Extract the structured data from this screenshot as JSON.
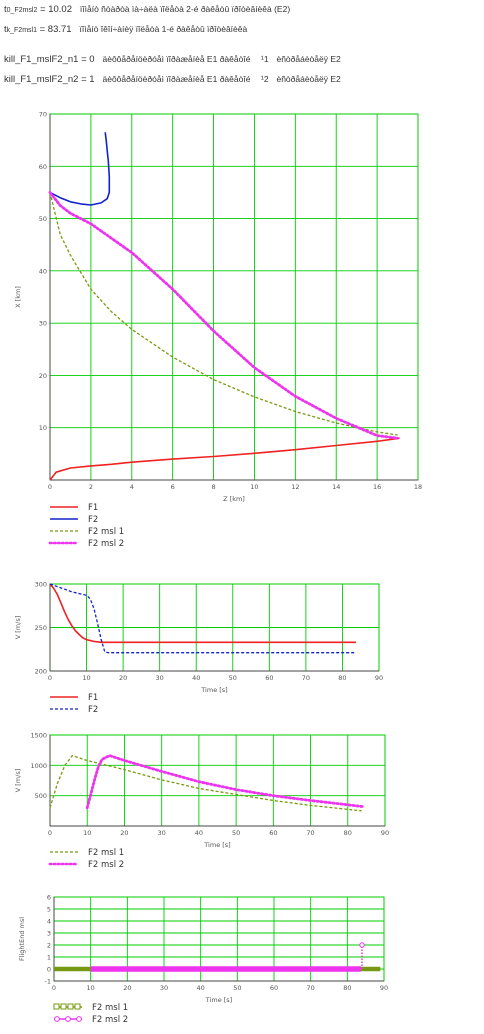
{
  "header": {
    "t0_label": "t",
    "t0_sub": "0_F2msl2",
    "t0_value": "= 10.02",
    "t0_desc": "ïîìåíò ñòàðòà ìà÷àëà ïîëåòà 2-é ðàêåòû ïðîòèâíèêà (E2)",
    "tk_label": "t",
    "tk_sub": "k_F2msl1",
    "tk_value": "= 83.71",
    "tk_desc": "ïîìåíò îêîí÷àíèÿ ïîëåòà 1-é ðàêåòû ïðîòèâíèêà",
    "kill1_label": "kill_F1_mslF2_n1 = 0",
    "kill1_desc": "äèôôåðåíöèðóåì ïîðàæåíèå E1 ðàêåòîé",
    "kill1_num": "¹1",
    "kill1_tail": "èñòðåáèòåëÿ E2",
    "kill2_label": "kill_F1_mslF2_n2 = 1",
    "kill2_desc": "äèôôåðåíöèðóåì ïîðàæåíèå E1 ðàêåòîé",
    "kill2_num": "¹2",
    "kill2_tail": "èñòðåáèòåëÿ E2"
  },
  "colors": {
    "grid": "#00cc00",
    "F1": "#ee2222",
    "F2": "#1122cc",
    "F2msl1": "#779911",
    "F2msl2": "#ee33ee",
    "fe_msl1": "#779911",
    "fe_msl2": "#ee33ee"
  },
  "chart_data": [
    {
      "id": "xz",
      "type": "line",
      "xlabel": "Z  [km]",
      "ylabel": "X  [km]",
      "xlim": [
        0,
        18
      ],
      "ylim": [
        0,
        70
      ],
      "xticks": [
        "0",
        "2",
        "4",
        "6",
        "8",
        "10",
        "12",
        "14",
        "16",
        "18"
      ],
      "yticks": [
        "10",
        "20",
        "30",
        "40",
        "50",
        "60",
        "70"
      ],
      "series": [
        {
          "name": "F1",
          "style": "solid",
          "x": [
            0,
            0.3,
            1,
            2,
            3,
            4,
            6,
            8,
            10,
            12,
            14,
            16,
            17.1
          ],
          "y": [
            0,
            1.5,
            2.3,
            2.7,
            3.0,
            3.4,
            4.0,
            4.5,
            5.1,
            5.8,
            6.6,
            7.4,
            8.0
          ]
        },
        {
          "name": "F2",
          "style": "solid",
          "x": [
            0,
            0.5,
            1,
            1.5,
            2,
            2.5,
            2.8,
            2.9,
            2.9,
            2.85,
            2.8,
            2.75,
            2.7
          ],
          "y": [
            55,
            54,
            53.2,
            52.8,
            52.6,
            53,
            53.8,
            55,
            58,
            61,
            63,
            65,
            66.5
          ]
        },
        {
          "name": "F2 msl 1",
          "style": "dash",
          "x": [
            0,
            0.5,
            1,
            2,
            3,
            4,
            6,
            8,
            10,
            12,
            14,
            16,
            17
          ],
          "y": [
            55,
            47,
            43,
            36.5,
            32.2,
            28.8,
            23.5,
            19.2,
            15.9,
            13.1,
            10.9,
            9.2,
            8.6
          ]
        },
        {
          "name": "F2 msl 2",
          "style": "dots",
          "x": [
            0,
            0.5,
            1,
            2,
            4,
            6,
            8,
            10,
            12,
            14,
            16,
            17
          ],
          "y": [
            55,
            52.5,
            51,
            49,
            43.5,
            36.5,
            28.5,
            21.5,
            16,
            11.8,
            8.5,
            8.0
          ]
        }
      ],
      "legend": [
        "F1",
        "F2",
        "F2 msl 1",
        "F2 msl 2"
      ]
    },
    {
      "id": "vt",
      "type": "line",
      "xlabel": "Time [s]",
      "ylabel": "V [m/s]",
      "xlim": [
        0,
        90
      ],
      "ylim": [
        200,
        300
      ],
      "xticks": [
        "0",
        "10",
        "20",
        "30",
        "40",
        "50",
        "60",
        "70",
        "80",
        "90"
      ],
      "yticks": [
        "200",
        "250",
        "300"
      ],
      "series": [
        {
          "name": "F1",
          "style": "solid",
          "x": [
            0,
            1,
            2,
            3,
            4,
            5,
            6,
            7,
            8,
            9,
            10,
            12,
            14,
            20,
            83.7
          ],
          "y": [
            300,
            295,
            288,
            278,
            268,
            259,
            252,
            246,
            242,
            238,
            236,
            234,
            233,
            233,
            233
          ]
        },
        {
          "name": "F2",
          "style": "dash",
          "x": [
            0,
            2,
            4,
            6,
            8,
            10,
            11,
            12,
            13,
            14,
            15,
            16,
            83.7
          ],
          "y": [
            300,
            297,
            294,
            291,
            289,
            287,
            283,
            272,
            255,
            236,
            222,
            221,
            221
          ]
        }
      ],
      "legend": [
        "F1",
        "F2"
      ]
    },
    {
      "id": "vmsl",
      "type": "line",
      "xlabel": "Time [s]",
      "ylabel": "V [m/s]",
      "xlim": [
        0,
        90
      ],
      "ylim": [
        0,
        1500
      ],
      "xticks": [
        "0",
        "10",
        "20",
        "30",
        "40",
        "50",
        "60",
        "70",
        "80",
        "90"
      ],
      "yticks": [
        "500",
        "1000",
        "1500"
      ],
      "series": [
        {
          "name": "F2 msl 1",
          "style": "dash",
          "x": [
            0,
            2,
            4,
            6,
            10,
            20,
            30,
            40,
            50,
            60,
            70,
            83.7
          ],
          "y": [
            300,
            700,
            1000,
            1160,
            1080,
            930,
            760,
            620,
            520,
            420,
            340,
            250
          ]
        },
        {
          "name": "F2 msl 2",
          "style": "dots",
          "x": [
            10,
            11,
            12,
            13,
            14,
            16,
            20,
            30,
            40,
            50,
            60,
            70,
            80,
            84
          ],
          "y": [
            300,
            530,
            770,
            980,
            1100,
            1160,
            1080,
            900,
            730,
            600,
            500,
            420,
            350,
            320
          ]
        }
      ],
      "legend": [
        "F2 msl 1",
        "F2 msl 2"
      ]
    },
    {
      "id": "fe",
      "type": "line",
      "xlabel": "Time [s]",
      "ylabel": "FlightEnd msl",
      "xlim": [
        0,
        90
      ],
      "ylim": [
        -1,
        6
      ],
      "xticks": [
        "0",
        "10",
        "20",
        "30",
        "40",
        "50",
        "60",
        "70",
        "80",
        "90"
      ],
      "yticks": [
        "-1",
        "0",
        "1",
        "2",
        "3",
        "4",
        "5",
        "6"
      ],
      "series": [
        {
          "name": "F2 msl 1",
          "style": "square-markers",
          "x": [
            0,
            10.02,
            83.7,
            89
          ],
          "y": [
            0,
            0,
            0,
            0
          ]
        },
        {
          "name": "F2 msl 2",
          "style": "circle-markers",
          "x": [
            10.02,
            83.7,
            84,
            84
          ],
          "y": [
            0,
            0,
            0,
            2
          ]
        }
      ],
      "legend": [
        "F2 msl 1",
        "F2 msl 2"
      ]
    }
  ]
}
